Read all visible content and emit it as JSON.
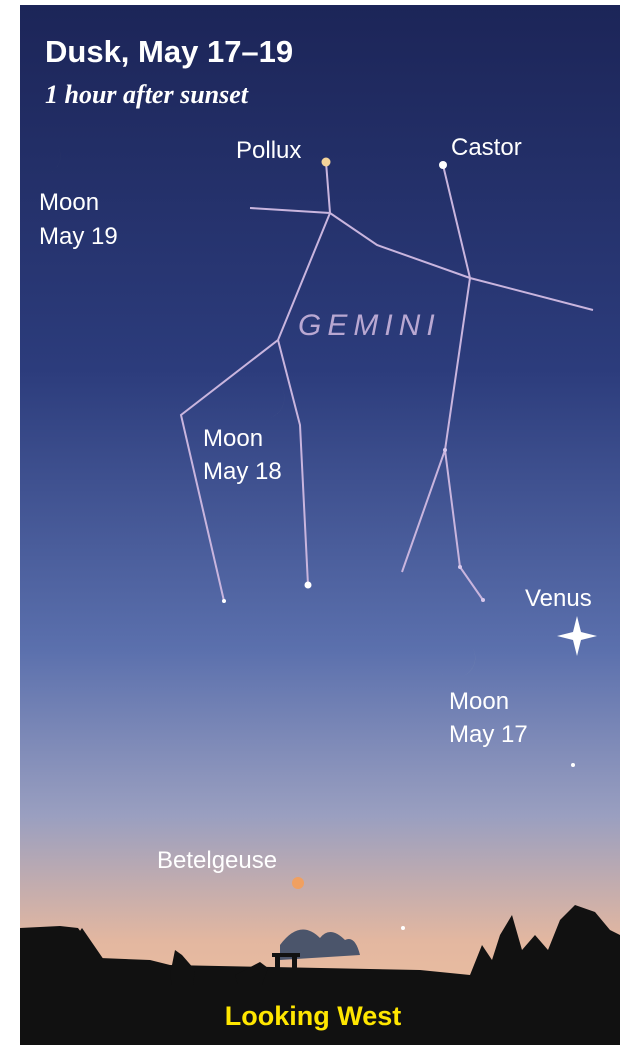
{
  "header": {
    "title": "Dusk, May 17–19",
    "subtitle": "1 hour after sunset"
  },
  "constellation": {
    "name": "GEMINI",
    "stars": [
      "Pollux",
      "Castor"
    ]
  },
  "moons": [
    [
      "Moon",
      "May 19"
    ],
    [
      "Moon",
      "May 18"
    ],
    [
      "Moon",
      "May 17"
    ]
  ],
  "planets": [
    "Venus"
  ],
  "other_stars": [
    "Betelgeuse"
  ],
  "footer": {
    "direction": "Looking West"
  }
}
